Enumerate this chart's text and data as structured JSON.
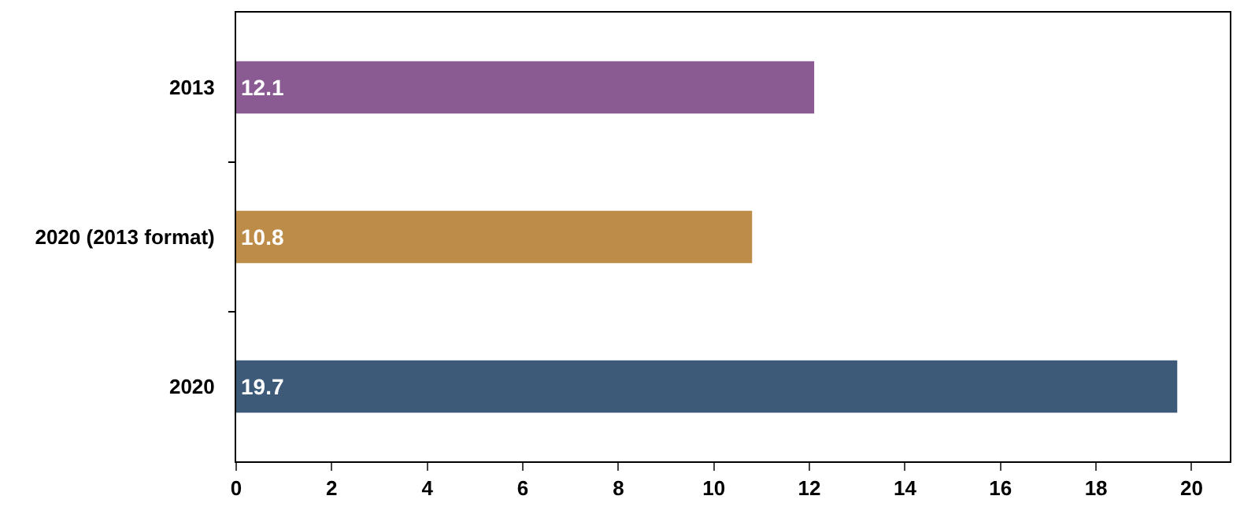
{
  "chart_data": {
    "type": "bar",
    "orientation": "horizontal",
    "categories": [
      "2013",
      "2020 (2013 format)",
      "2020"
    ],
    "values": [
      12.1,
      10.8,
      19.7
    ],
    "colors": [
      "#8a5b92",
      "#bd8c48",
      "#3d5a78"
    ],
    "xlim": [
      0,
      20.8
    ],
    "xticks": [
      0,
      2,
      4,
      6,
      8,
      10,
      12,
      14,
      16,
      18,
      20
    ],
    "data_labels": true
  }
}
